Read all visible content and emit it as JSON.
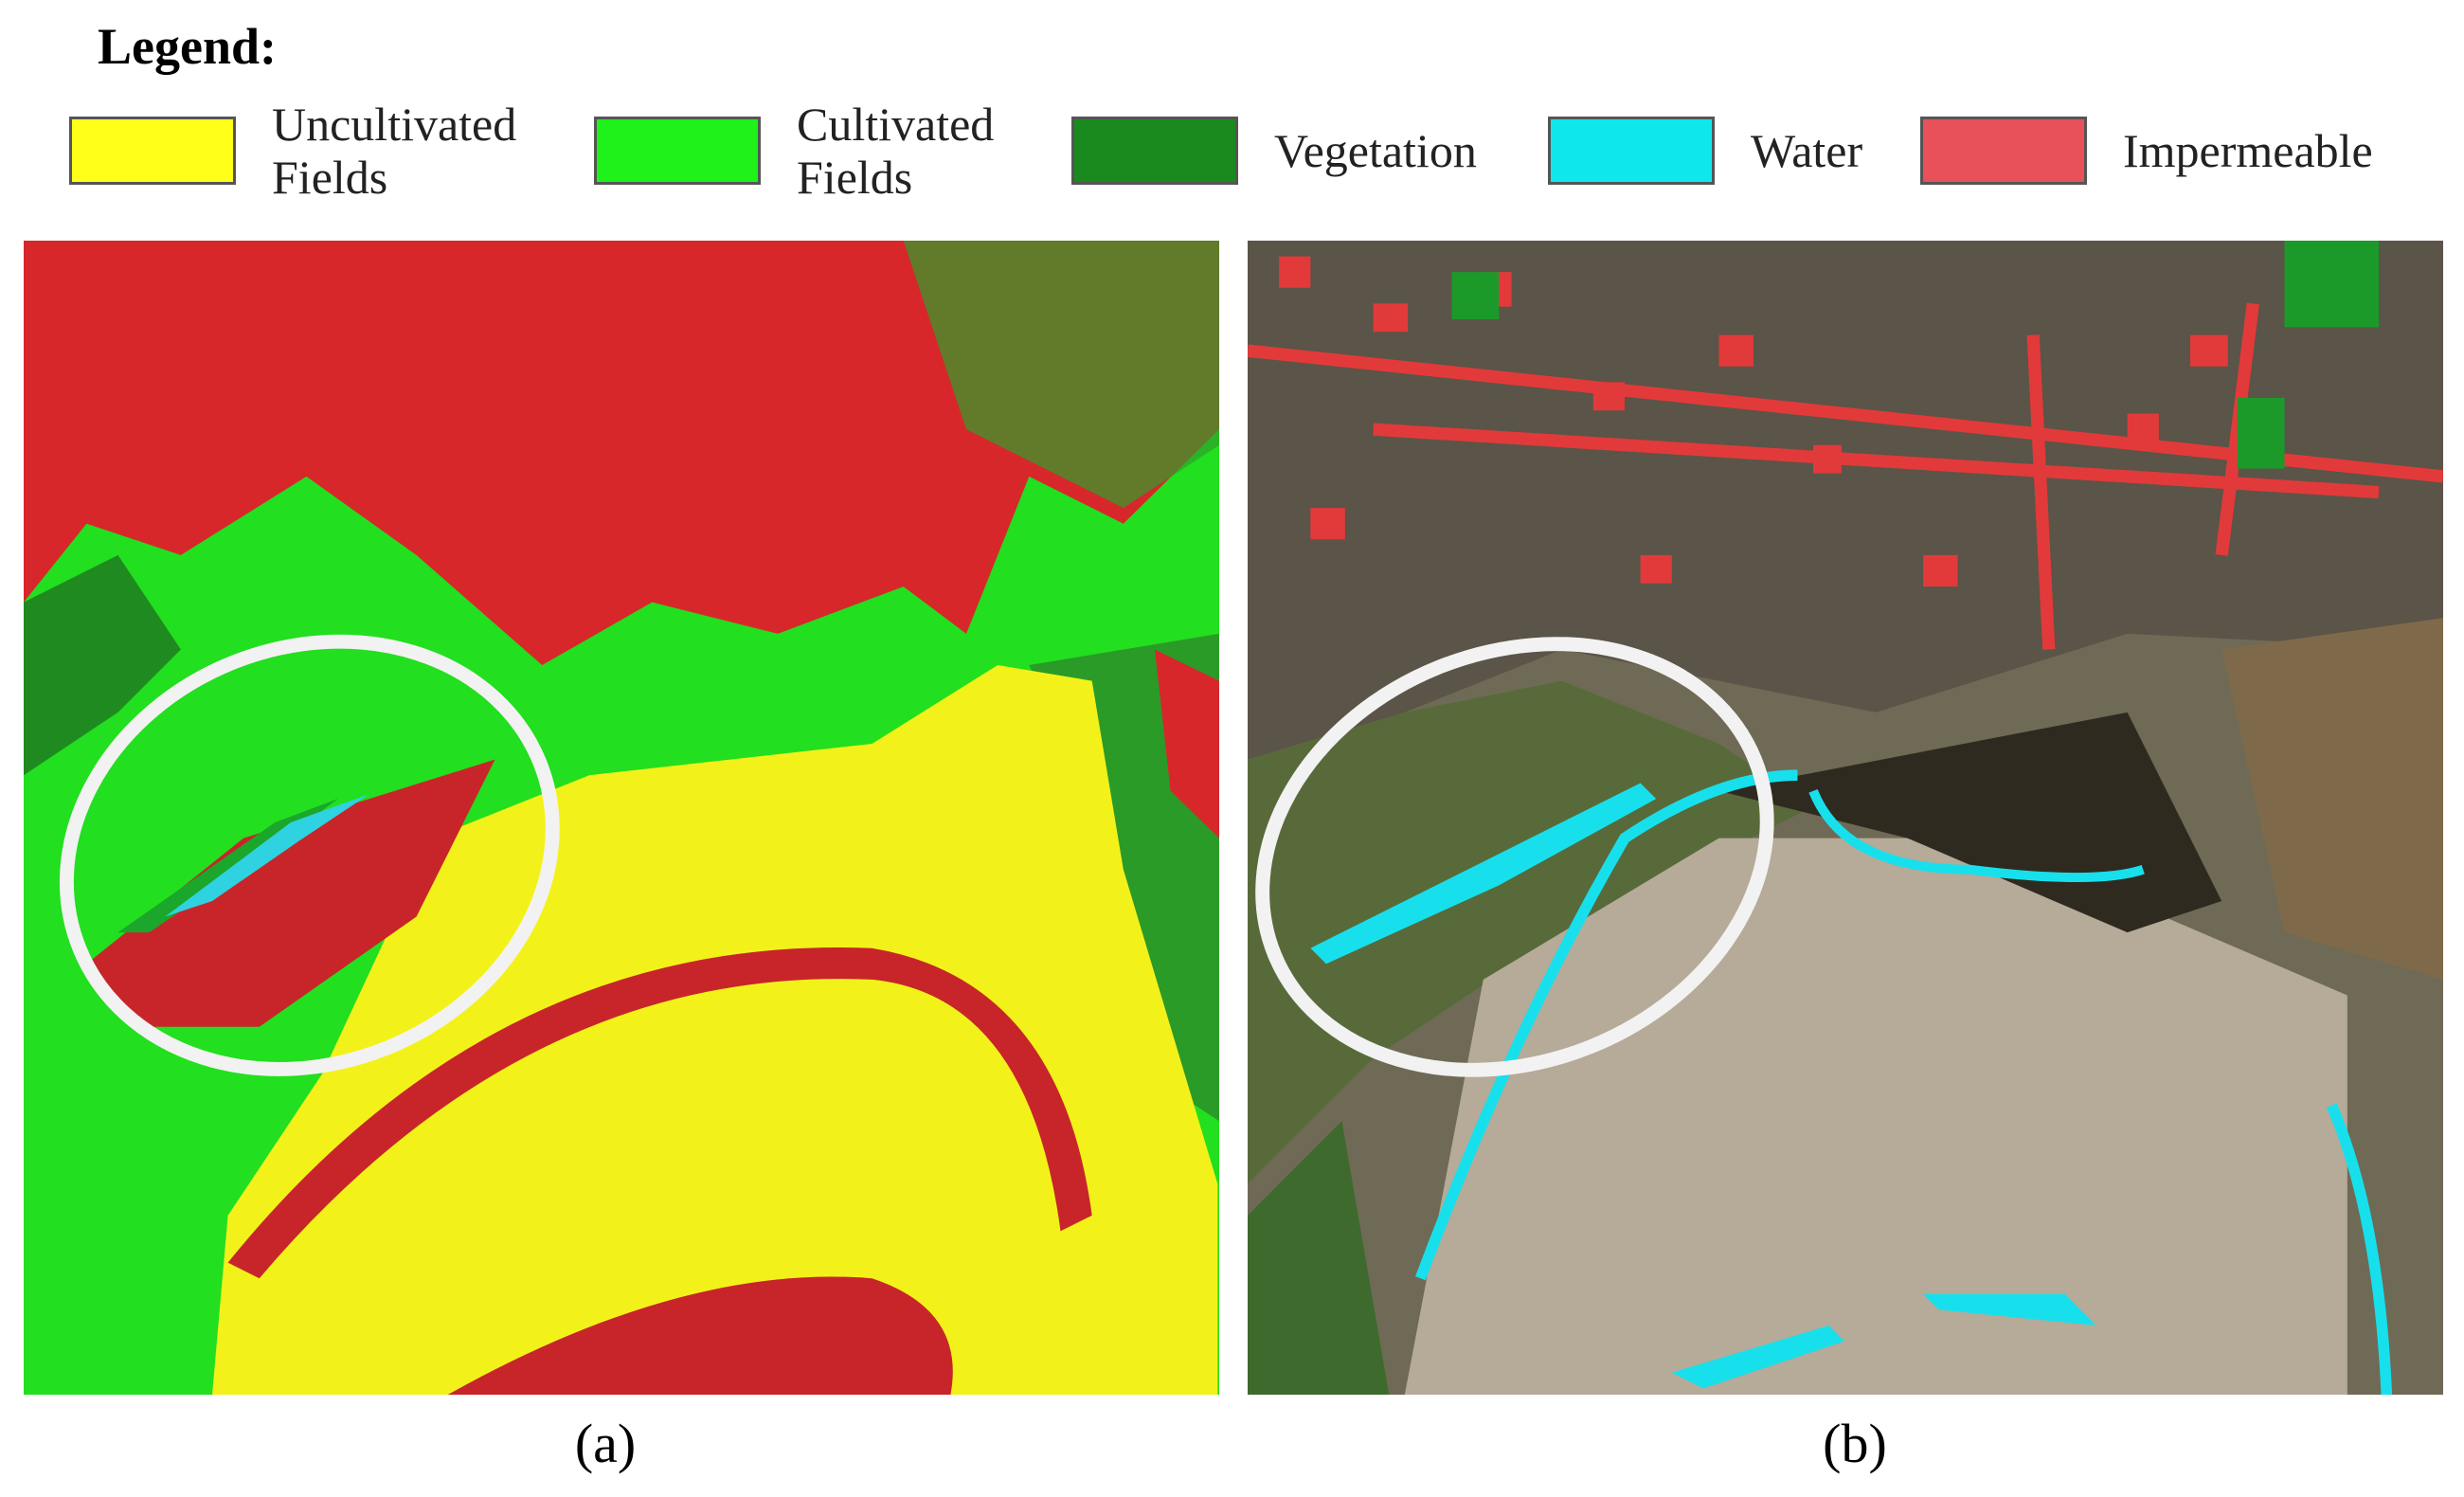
{
  "legend": {
    "title": "Legend:",
    "items": [
      {
        "label": "Uncultivated Fields",
        "color": "#ffff1a"
      },
      {
        "label": "Cultivated Fields",
        "color": "#1ef21a"
      },
      {
        "label": "Vegetation",
        "color": "#1a8a1e"
      },
      {
        "label": "Water",
        "color": "#0ee8ec"
      },
      {
        "label": "Impermeable",
        "color": "#e8505a"
      }
    ]
  },
  "panels": [
    {
      "caption": "(a)"
    },
    {
      "caption": "(b)"
    }
  ]
}
